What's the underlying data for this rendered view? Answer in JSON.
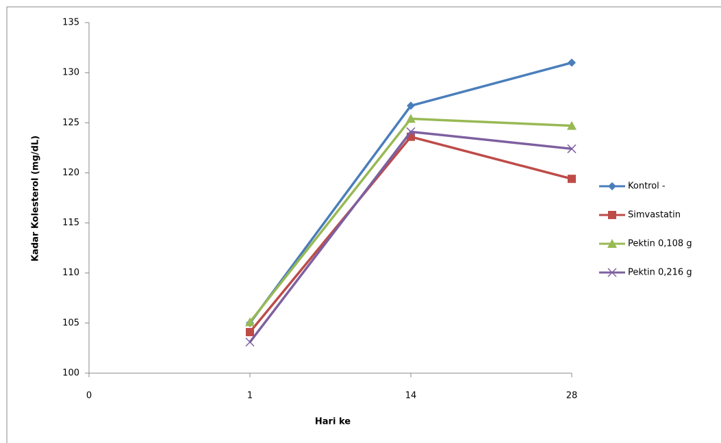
{
  "chart_data": {
    "type": "line",
    "x_label": "Hari ke",
    "y_label": "Kadar Kolesterol (mg/dL)",
    "categories": [
      "0",
      "1",
      "14",
      "28"
    ],
    "series": [
      {
        "name": "Kontrol -",
        "color": "#4a7ebb",
        "marker": "diamond",
        "values": [
          null,
          105,
          126.7,
          131
        ]
      },
      {
        "name": "Simvastatin",
        "color": "#be4b48",
        "marker": "square",
        "values": [
          null,
          104.1,
          123.6,
          119.4
        ]
      },
      {
        "name": "Pektin 0,108 g",
        "color": "#98b954",
        "marker": "triangle",
        "values": [
          null,
          105.1,
          125.4,
          124.7
        ]
      },
      {
        "name": "Pektin 0,216 g",
        "color": "#7d60a0",
        "marker": "x",
        "values": [
          null,
          103.1,
          124.1,
          122.4
        ]
      }
    ],
    "ylim": [
      100,
      135
    ],
    "yticks": [
      100,
      105,
      110,
      115,
      120,
      125,
      130,
      135
    ],
    "legend": "right"
  }
}
